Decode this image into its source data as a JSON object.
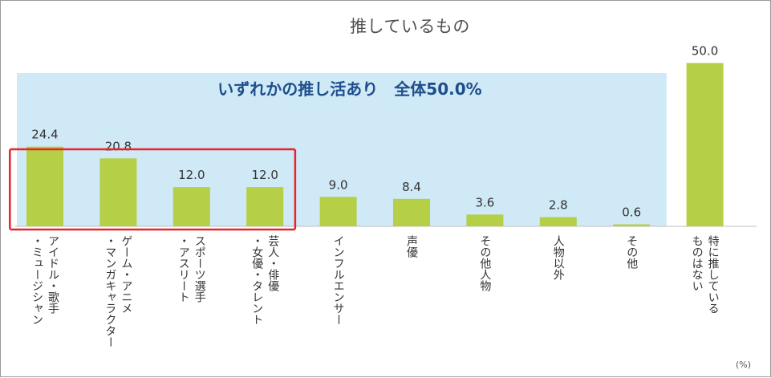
{
  "chart_data": {
    "type": "bar",
    "title": "推しているもの",
    "annotation": "いずれかの推し活あり　全体50.0%",
    "unit_label": "(%)",
    "categories": [
      "アイドル・歌手\n・ミュージシャン",
      "ゲーム・アニメ\n・マンガキャラクター",
      "スポーツ選手\n・アスリート",
      "芸人・俳優\n・女優・タレント",
      "インフルエンサー",
      "声優",
      "その他人物",
      "人物以外",
      "その他",
      "特に推している\nものはない"
    ],
    "values": [
      24.4,
      20.8,
      12.0,
      12.0,
      9.0,
      8.4,
      3.6,
      2.8,
      0.6,
      50.0
    ],
    "value_labels": [
      "24.4",
      "20.8",
      "12.0",
      "12.0",
      "9.0",
      "8.4",
      "3.6",
      "2.8",
      "0.6",
      "50.0"
    ],
    "ylim": [
      0,
      100
    ],
    "highlighted_categories": [
      0,
      1,
      2,
      3
    ],
    "shaded_group": [
      0,
      1,
      2,
      3,
      4,
      5,
      6,
      7,
      8
    ],
    "colors": {
      "bar": "#b5cf46",
      "shade": "#cfe9f6",
      "highlight": "#e8232b",
      "annotation_text": "#1e4e8c",
      "axis": "#bfbfbf"
    }
  }
}
